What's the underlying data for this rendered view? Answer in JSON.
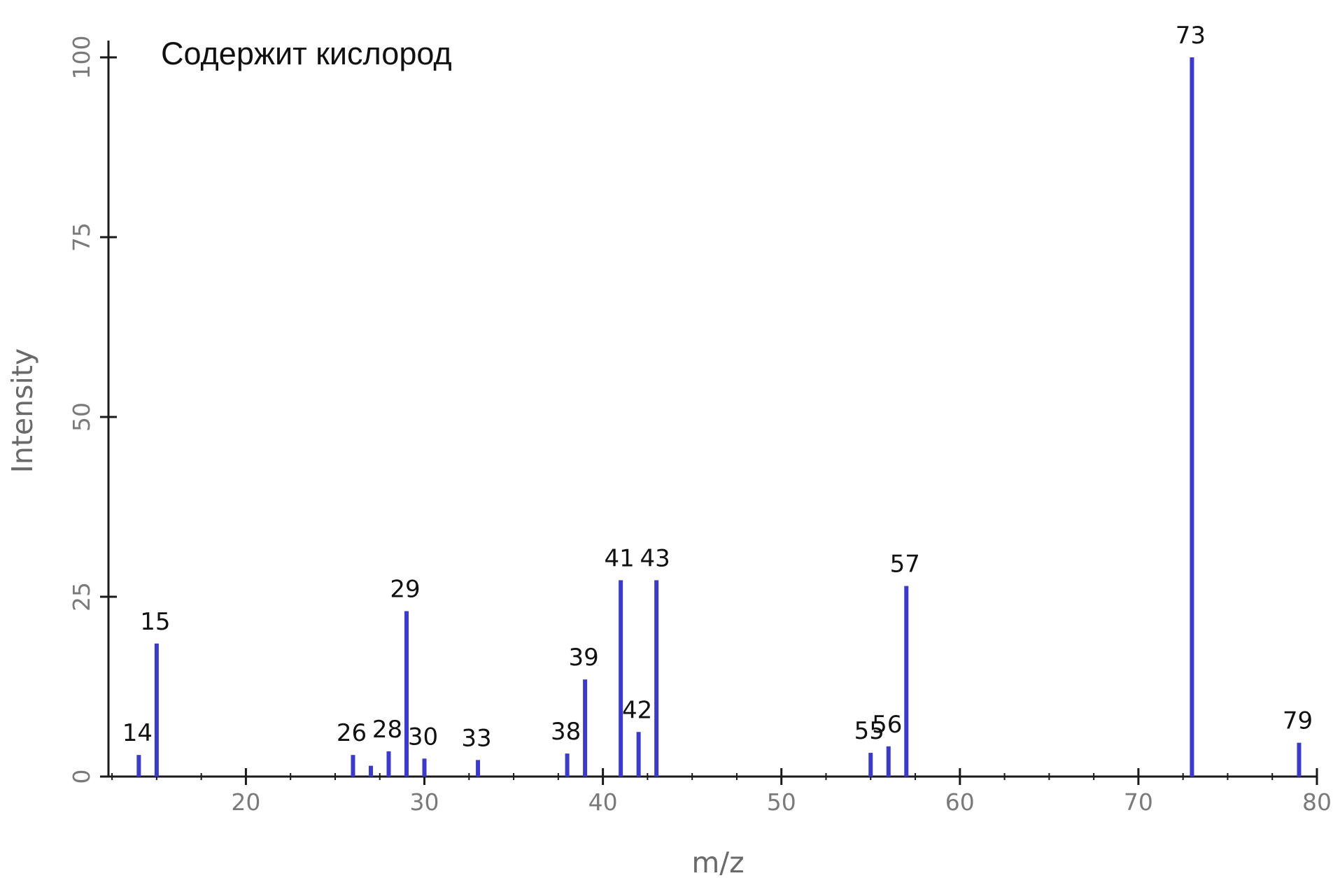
{
  "chart_data": {
    "type": "bar",
    "title": "",
    "annotation": "Содержит кислород",
    "xlabel": "m/z",
    "ylabel": "Intensity",
    "xlim": [
      12.3,
      80
    ],
    "ylim": [
      0,
      100
    ],
    "xticks": [
      20,
      30,
      40,
      50,
      60,
      70,
      80
    ],
    "yticks": [
      0,
      25,
      50,
      75,
      100
    ],
    "grid": false,
    "bar_color": "#3a3ad0",
    "axis_color": "#1a1a1a",
    "x": [
      14,
      15,
      26,
      27,
      28,
      29,
      30,
      33,
      38,
      39,
      41,
      42,
      43,
      55,
      56,
      57,
      73,
      79
    ],
    "values": [
      3,
      18.5,
      3,
      1.5,
      3.5,
      23,
      2.5,
      2.3,
      3.2,
      13.5,
      27.3,
      6.2,
      27.3,
      3.3,
      4.2,
      26.5,
      100,
      4.7
    ],
    "labels": [
      "14",
      "15",
      "26",
      "",
      "28",
      "29",
      "30",
      "33",
      "38",
      "39",
      "41",
      "42",
      "43",
      "55",
      "56",
      "57",
      "73",
      "79"
    ]
  }
}
